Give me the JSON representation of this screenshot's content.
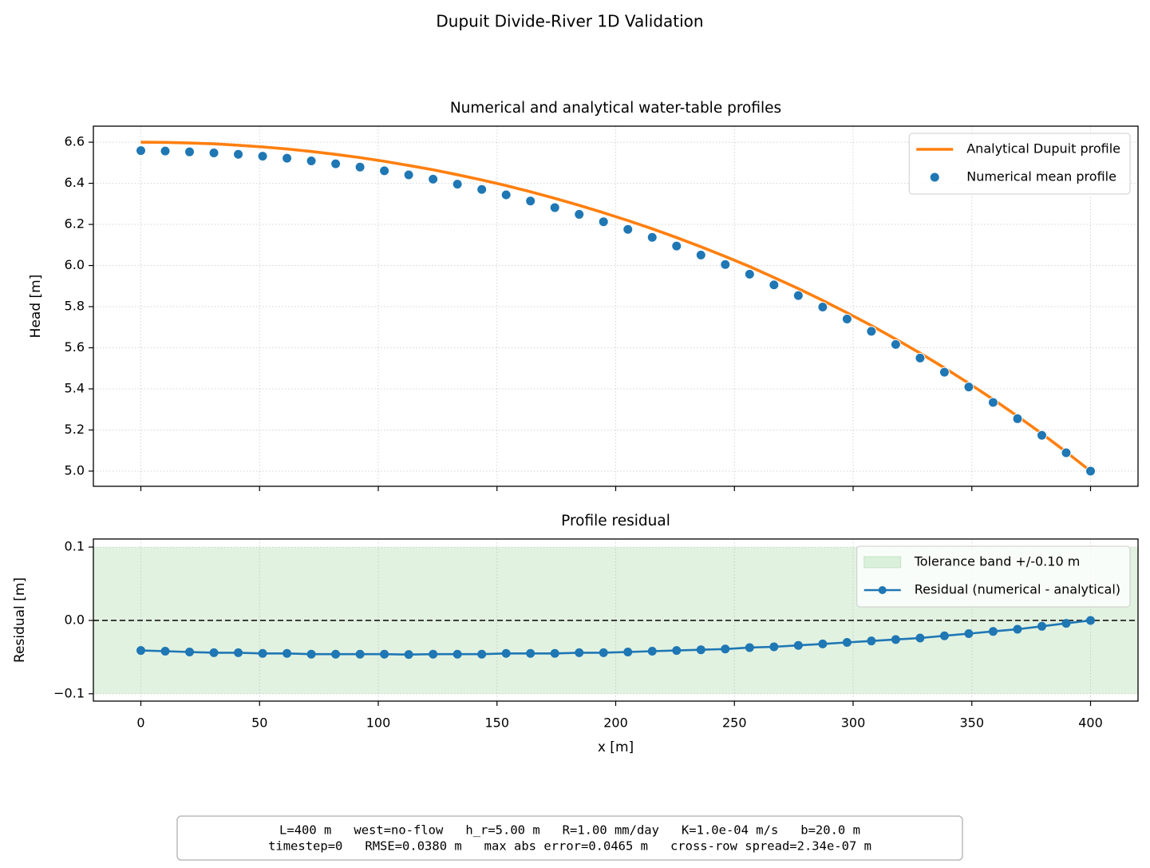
{
  "figure": {
    "title": "Dupuit Divide-River 1D Validation",
    "note_lines": [
      "L=400 m   west=no-flow   h_r=5.00 m   R=1.00 mm/day   K=1.0e-04 m/s   b=20.0 m",
      "timestep=0   RMSE=0.0380 m   max abs error=0.0465 m   cross-row spread=2.34e-07 m"
    ]
  },
  "chart_data": [
    {
      "type": "line",
      "title": "Numerical and analytical water-table profiles",
      "ylabel": "Head [m]",
      "x": [
        0,
        10.26,
        20.51,
        30.77,
        41.03,
        51.28,
        61.54,
        71.79,
        82.05,
        92.31,
        102.56,
        112.82,
        123.08,
        133.33,
        143.59,
        153.85,
        164.1,
        174.36,
        184.62,
        194.87,
        205.13,
        215.38,
        225.64,
        235.9,
        246.15,
        256.41,
        266.67,
        276.92,
        287.18,
        297.44,
        307.69,
        317.95,
        328.21,
        338.46,
        348.72,
        358.97,
        369.23,
        379.49,
        389.74,
        400
      ],
      "series": [
        {
          "name": "Analytical Dupuit profile",
          "color": "#ff7f0e",
          "style": "line",
          "values": [
            6.6,
            6.599,
            6.596,
            6.592,
            6.585,
            6.577,
            6.567,
            6.555,
            6.541,
            6.525,
            6.507,
            6.487,
            6.466,
            6.442,
            6.416,
            6.389,
            6.359,
            6.327,
            6.293,
            6.257,
            6.219,
            6.179,
            6.136,
            6.091,
            6.044,
            5.995,
            5.942,
            5.888,
            5.83,
            5.77,
            5.708,
            5.642,
            5.574,
            5.502,
            5.427,
            5.349,
            5.267,
            5.182,
            5.093,
            5.0
          ]
        },
        {
          "name": "Numerical mean profile",
          "color": "#1f77b4",
          "style": "scatter",
          "values": [
            6.559,
            6.557,
            6.553,
            6.548,
            6.541,
            6.532,
            6.522,
            6.509,
            6.495,
            6.479,
            6.461,
            6.441,
            6.42,
            6.396,
            6.37,
            6.344,
            6.314,
            6.282,
            6.249,
            6.213,
            6.176,
            6.137,
            6.095,
            6.051,
            6.005,
            5.958,
            5.906,
            5.854,
            5.798,
            5.74,
            5.68,
            5.616,
            5.55,
            5.481,
            5.409,
            5.334,
            5.255,
            5.174,
            5.089,
            5.0
          ]
        }
      ],
      "xlim": [
        -20,
        420
      ],
      "xticks": [
        0,
        50,
        100,
        150,
        200,
        250,
        300,
        350,
        400
      ],
      "ylim": [
        4.926,
        6.678
      ],
      "yticks": [
        {
          "value": 5,
          "label": "5.0"
        },
        5.2,
        5.4,
        5.6,
        5.8,
        {
          "value": 6,
          "label": "6.0"
        },
        6.2,
        6.4,
        6.6
      ],
      "grid": true,
      "legend": "upper right"
    },
    {
      "type": "line",
      "title": "Profile residual",
      "xlabel": "x [m]",
      "ylabel": "Residual [m]",
      "x": [
        0,
        10.26,
        20.51,
        30.77,
        41.03,
        51.28,
        61.54,
        71.79,
        82.05,
        92.31,
        102.56,
        112.82,
        123.08,
        133.33,
        143.59,
        153.85,
        164.1,
        174.36,
        184.62,
        194.87,
        205.13,
        215.38,
        225.64,
        235.9,
        246.15,
        256.41,
        266.67,
        276.92,
        287.18,
        297.44,
        307.69,
        317.95,
        328.21,
        338.46,
        348.72,
        358.97,
        369.23,
        379.49,
        389.74,
        400
      ],
      "band": {
        "name": "Tolerance band +/-0.10 m",
        "lower": -0.1,
        "upper": 0.1,
        "color": "#2ca02c"
      },
      "hline": 0,
      "series": [
        {
          "name": "Residual (numerical - analytical)",
          "color": "#1f77b4",
          "style": "line-marker",
          "values": [
            -0.041,
            -0.042,
            -0.043,
            -0.044,
            -0.044,
            -0.045,
            -0.045,
            -0.046,
            -0.046,
            -0.046,
            -0.046,
            -0.0465,
            -0.046,
            -0.046,
            -0.046,
            -0.045,
            -0.045,
            -0.045,
            -0.044,
            -0.044,
            -0.043,
            -0.042,
            -0.041,
            -0.04,
            -0.039,
            -0.037,
            -0.036,
            -0.034,
            -0.032,
            -0.03,
            -0.028,
            -0.026,
            -0.024,
            -0.021,
            -0.018,
            -0.015,
            -0.012,
            -0.008,
            -0.004,
            0.0
          ]
        }
      ],
      "xlim": [
        -20,
        420
      ],
      "xticks": [
        0,
        50,
        100,
        150,
        200,
        250,
        300,
        350,
        400
      ],
      "ylim": [
        -0.11,
        0.111
      ],
      "yticks": [
        {
          "value": -0.1,
          "label": "−0.1"
        },
        {
          "value": 0,
          "label": "0.0"
        },
        0.1
      ],
      "grid": true,
      "legend": "upper right"
    }
  ]
}
